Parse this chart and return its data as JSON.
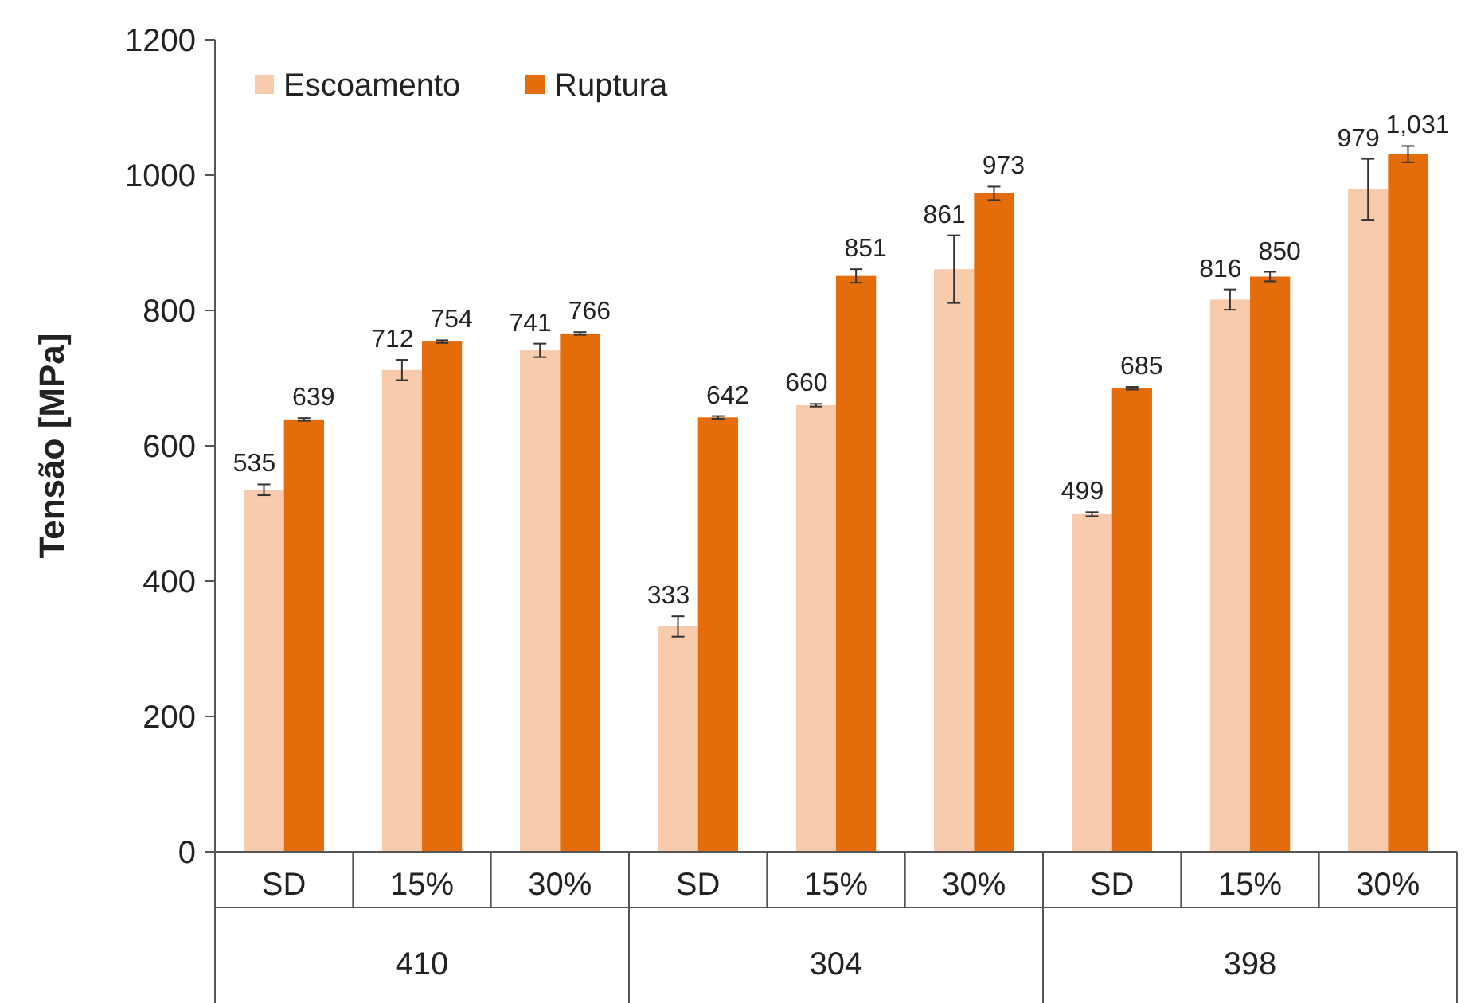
{
  "chart_data": {
    "type": "bar",
    "ylabel": "Tensão [MPa]",
    "categories": [
      "SD",
      "15%",
      "30%",
      "SD",
      "15%",
      "30%",
      "SD",
      "15%",
      "30%"
    ],
    "annotations": [
      "410",
      "304",
      "398"
    ],
    "ylim": [
      0,
      1200
    ],
    "yticks": [
      0,
      200,
      400,
      600,
      800,
      1000,
      1200
    ],
    "grid": false,
    "legend": "top left",
    "series": [
      {
        "name": "Escoamento",
        "color": "#f8cbad",
        "values": [
          535,
          712,
          741,
          333,
          660,
          861,
          499,
          816,
          979
        ],
        "errors": [
          8,
          15,
          10,
          15,
          2,
          50,
          3,
          15,
          45
        ],
        "value_labels": [
          "535",
          "712",
          "741",
          "333",
          "660",
          "861",
          "499",
          "816",
          "979"
        ]
      },
      {
        "name": "Ruptura",
        "color": "#e46c0a",
        "values": [
          639,
          754,
          766,
          642,
          851,
          973,
          685,
          850,
          1031
        ],
        "errors": [
          2,
          2,
          2,
          2,
          10,
          10,
          2,
          7,
          12
        ],
        "value_labels": [
          "639",
          "754",
          "766",
          "642",
          "851",
          "973",
          "685",
          "850",
          "1,031"
        ]
      }
    ]
  }
}
